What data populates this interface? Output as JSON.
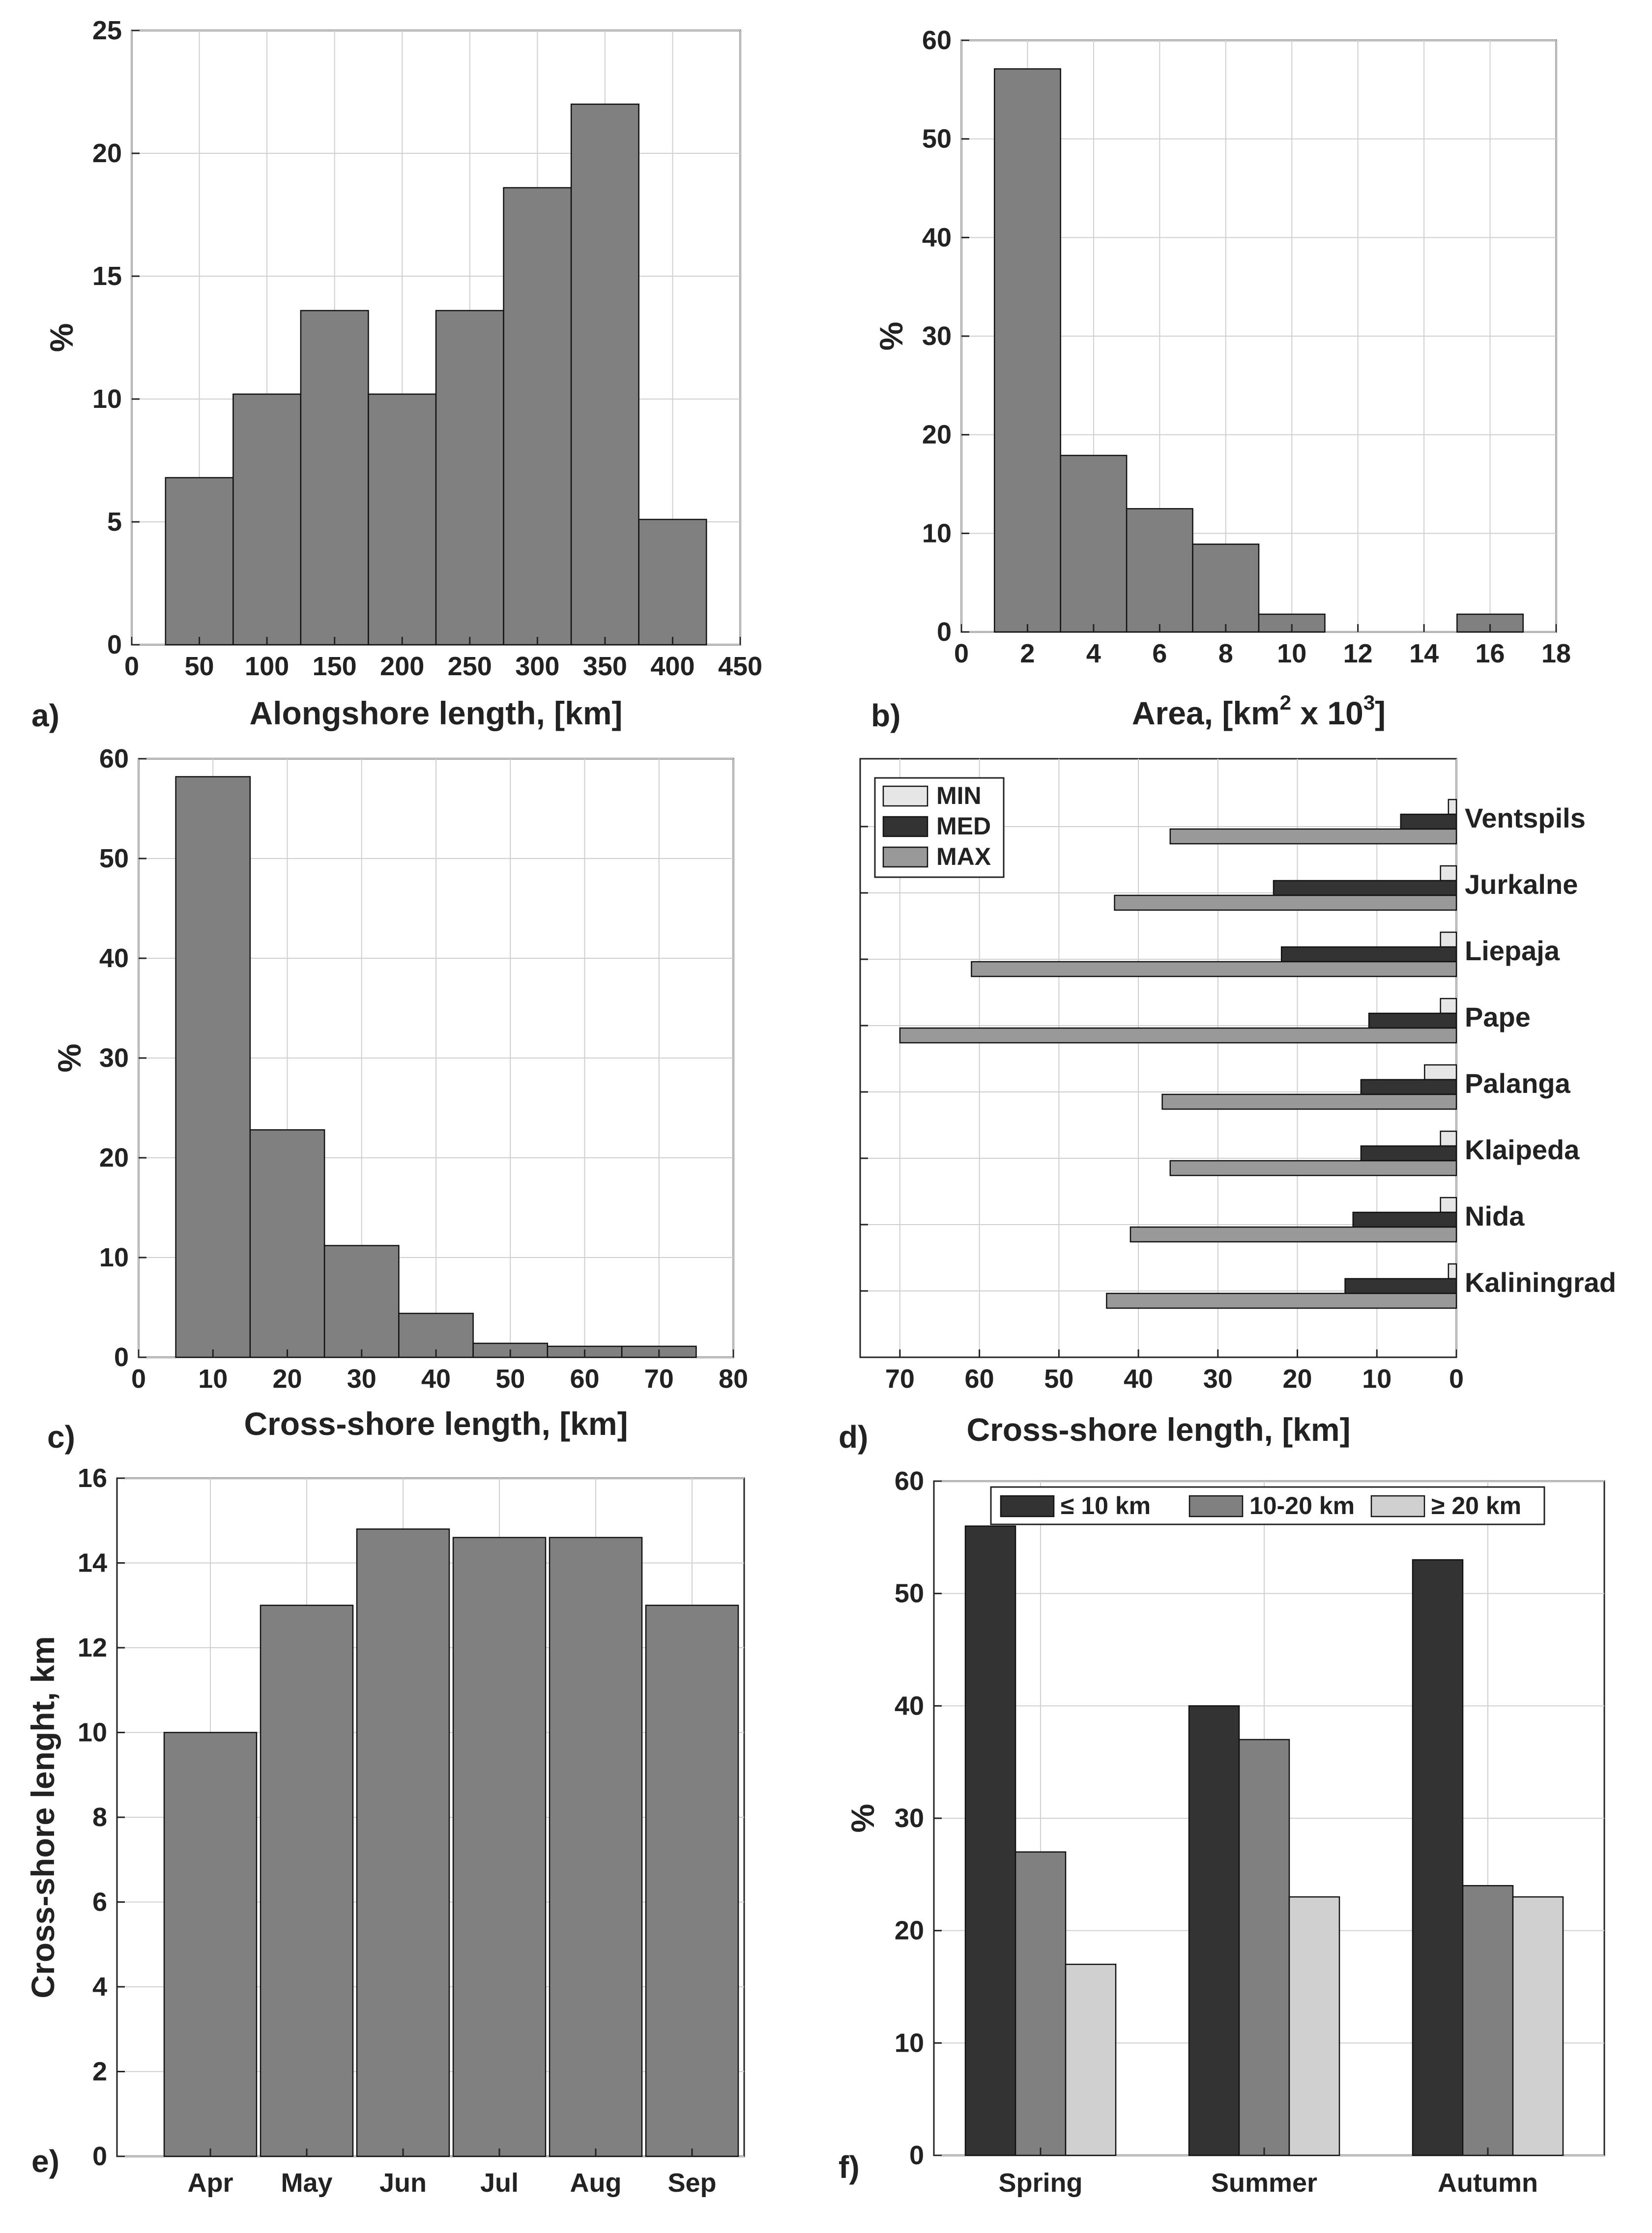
{
  "colors": {
    "bar_gray": "#808080",
    "min_color": "#e6e6e6",
    "med_color": "#333333",
    "max_color": "#999999",
    "le10_color": "#333333",
    "mid_color": "#808080",
    "ge20_color": "#d0d0d0"
  },
  "chart_data": [
    {
      "id": "a",
      "type": "bar",
      "panel_label": "a)",
      "xlabel": "Alongshore length, [km]",
      "ylabel": "%",
      "xlim": [
        0,
        450
      ],
      "ylim": [
        0,
        25
      ],
      "xticks": [
        0,
        50,
        100,
        150,
        200,
        250,
        300,
        350,
        400,
        450
      ],
      "yticks": [
        0,
        5,
        10,
        15,
        20,
        25
      ],
      "bins": [
        [
          25,
          75
        ],
        [
          75,
          125
        ],
        [
          125,
          175
        ],
        [
          175,
          225
        ],
        [
          225,
          275
        ],
        [
          275,
          325
        ],
        [
          325,
          375
        ],
        [
          375,
          425
        ]
      ],
      "values": [
        6.8,
        10.2,
        13.6,
        10.2,
        13.6,
        18.6,
        22.0,
        5.1
      ]
    },
    {
      "id": "b",
      "type": "bar",
      "panel_label": "b)",
      "xlabel_parts": [
        "Area, [km",
        "2",
        " x 10",
        "3",
        "]"
      ],
      "ylabel": "%",
      "xlim": [
        0,
        18
      ],
      "ylim": [
        0,
        60
      ],
      "xticks": [
        0,
        2,
        4,
        6,
        8,
        10,
        12,
        14,
        16,
        18
      ],
      "yticks": [
        0,
        10,
        20,
        30,
        40,
        50,
        60
      ],
      "bins": [
        [
          1,
          3
        ],
        [
          3,
          5
        ],
        [
          5,
          7
        ],
        [
          7,
          9
        ],
        [
          9,
          11
        ],
        [
          11,
          13
        ],
        [
          13,
          15
        ],
        [
          15,
          17
        ]
      ],
      "values": [
        57.1,
        17.9,
        12.5,
        8.9,
        1.8,
        0,
        0,
        1.8
      ]
    },
    {
      "id": "c",
      "type": "bar",
      "panel_label": "c)",
      "xlabel": "Cross-shore length, [km]",
      "ylabel": "%",
      "xlim": [
        0,
        80
      ],
      "ylim": [
        0,
        60
      ],
      "xticks": [
        0,
        10,
        20,
        30,
        40,
        50,
        60,
        70,
        80
      ],
      "yticks": [
        0,
        10,
        20,
        30,
        40,
        50,
        60
      ],
      "bins": [
        [
          5,
          15
        ],
        [
          15,
          25
        ],
        [
          25,
          35
        ],
        [
          35,
          45
        ],
        [
          45,
          55
        ],
        [
          55,
          65
        ],
        [
          65,
          75
        ]
      ],
      "values": [
        58.2,
        22.8,
        11.2,
        4.4,
        1.4,
        1.1,
        1.1
      ]
    },
    {
      "id": "d",
      "type": "bar",
      "orientation": "horizontal",
      "panel_label": "d)",
      "xlabel": "Cross-shore length, [km]",
      "xlim": [
        0,
        75
      ],
      "xticks": [
        70,
        60,
        50,
        40,
        30,
        20,
        10,
        0
      ],
      "categories": [
        "Ventspils",
        "Jurkalne",
        "Liepaja",
        "Pape",
        "Palanga",
        "Klaipeda",
        "Nida",
        "Kaliningrad"
      ],
      "legend": [
        "MIN",
        "MED",
        "MAX"
      ],
      "series": [
        {
          "name": "MIN",
          "values": [
            1,
            2,
            2,
            2,
            4,
            2,
            2,
            1
          ]
        },
        {
          "name": "MED",
          "values": [
            7,
            23,
            22,
            11,
            12,
            12,
            13,
            14
          ]
        },
        {
          "name": "MAX",
          "values": [
            36,
            43,
            61,
            70,
            37,
            36,
            41,
            44
          ]
        }
      ]
    },
    {
      "id": "e",
      "type": "bar",
      "panel_label": "e)",
      "ylabel": "Cross-shore lenght, km",
      "categories": [
        "Apr",
        "May",
        "Jun",
        "Jul",
        "Aug",
        "Sep"
      ],
      "values": [
        10.0,
        13.0,
        14.8,
        14.6,
        14.6,
        13.0
      ],
      "ylim": [
        0,
        16
      ],
      "yticks": [
        0,
        2,
        4,
        6,
        8,
        10,
        12,
        14,
        16
      ]
    },
    {
      "id": "f",
      "type": "bar",
      "panel_label": "f)",
      "ylabel": "%",
      "categories": [
        "Spring",
        "Summer",
        "Autumn"
      ],
      "ylim": [
        0,
        60
      ],
      "yticks": [
        0,
        10,
        20,
        30,
        40,
        50,
        60
      ],
      "legend": [
        "≤ 10 km",
        "10-20 km",
        "≥ 20 km"
      ],
      "series": [
        {
          "name": "≤ 10 km",
          "values": [
            56,
            40,
            53
          ]
        },
        {
          "name": "10-20 km",
          "values": [
            27,
            37,
            24
          ]
        },
        {
          "name": "≥ 20 km",
          "values": [
            17,
            23,
            23
          ]
        }
      ]
    }
  ]
}
